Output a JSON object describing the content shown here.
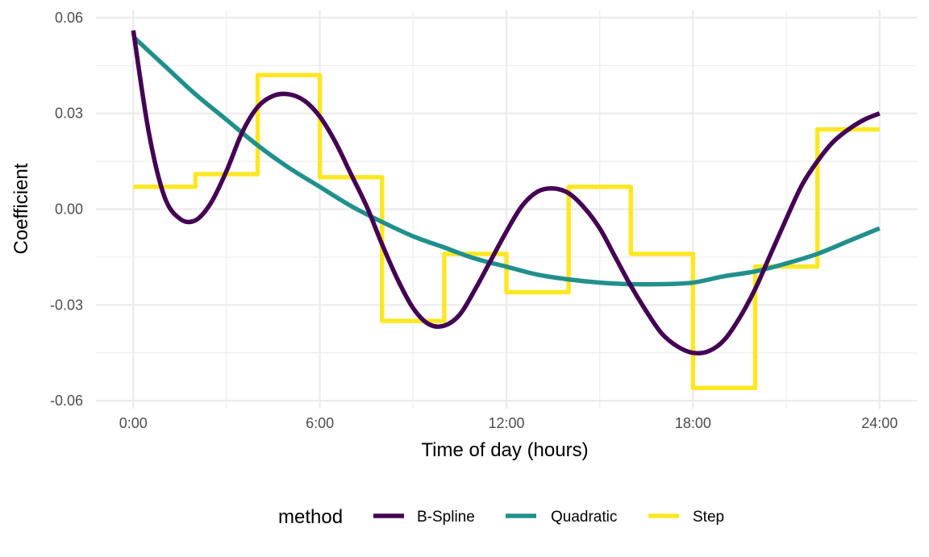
{
  "chart_data": {
    "type": "line",
    "title": "",
    "xlabel": "Time of day (hours)",
    "ylabel": "Coefficient",
    "xlim": [
      -1.2,
      25.2
    ],
    "ylim": [
      -0.0625,
      0.0625
    ],
    "x_ticks": [
      0,
      6,
      12,
      18,
      24
    ],
    "x_tick_labels": [
      "0:00",
      "6:00",
      "12:00",
      "18:00",
      "24:00"
    ],
    "y_ticks": [
      -0.06,
      -0.03,
      0.0,
      0.03,
      0.06
    ],
    "y_tick_labels": [
      "-0.06",
      "-0.03",
      "0.00",
      "0.03",
      "0.06"
    ],
    "x_minor_ticks": [
      3,
      9,
      15,
      21
    ],
    "y_minor_ticks": [
      -0.045,
      -0.015,
      0.015,
      0.045
    ],
    "grid": true,
    "legend": {
      "title": "method",
      "position": "bottom"
    },
    "series": [
      {
        "name": "B-Spline",
        "color": "#440154",
        "style": "smooth",
        "x": [
          0,
          0.5,
          1,
          1.5,
          2,
          2.5,
          3,
          3.5,
          4,
          4.5,
          5,
          5.5,
          6,
          6.5,
          7,
          7.5,
          8,
          8.5,
          9,
          9.5,
          10,
          10.5,
          11,
          11.5,
          12,
          12.5,
          13,
          13.5,
          14,
          14.5,
          15,
          15.5,
          16,
          16.5,
          17,
          17.5,
          18,
          18.5,
          19,
          19.5,
          20,
          20.5,
          21,
          21.5,
          22,
          22.5,
          23,
          23.5,
          24
        ],
        "y": [
          0.056,
          0.024,
          0.004,
          -0.003,
          -0.0035,
          0.002,
          0.012,
          0.024,
          0.032,
          0.0355,
          0.036,
          0.034,
          0.029,
          0.021,
          0.011,
          0.001,
          -0.011,
          -0.022,
          -0.031,
          -0.036,
          -0.0365,
          -0.033,
          -0.025,
          -0.016,
          -0.007,
          0.001,
          0.0055,
          0.0065,
          0.005,
          0.0005,
          -0.006,
          -0.015,
          -0.024,
          -0.032,
          -0.039,
          -0.043,
          -0.045,
          -0.0445,
          -0.041,
          -0.034,
          -0.025,
          -0.014,
          -0.003,
          0.0075,
          0.015,
          0.021,
          0.025,
          0.028,
          0.03
        ]
      },
      {
        "name": "Quadratic",
        "color": "#21908c",
        "style": "smooth",
        "x": [
          0,
          1,
          2,
          3,
          4,
          5,
          6,
          7,
          8,
          9,
          10,
          11,
          12,
          13,
          14,
          15,
          16,
          17,
          18,
          19,
          20,
          21,
          22,
          23,
          24
        ],
        "y": [
          0.054,
          0.045,
          0.036,
          0.028,
          0.02,
          0.013,
          0.007,
          0.001,
          -0.004,
          -0.0085,
          -0.012,
          -0.0155,
          -0.018,
          -0.0205,
          -0.022,
          -0.023,
          -0.0235,
          -0.0235,
          -0.023,
          -0.021,
          -0.0195,
          -0.017,
          -0.014,
          -0.01,
          -0.006
        ]
      },
      {
        "name": "Step",
        "color": "#fde725",
        "style": "step",
        "x": [
          0,
          2,
          4,
          6,
          8,
          10,
          12,
          14,
          16,
          18,
          20,
          22,
          24
        ],
        "y": [
          0.007,
          0.011,
          0.042,
          0.01,
          -0.035,
          -0.014,
          -0.026,
          0.007,
          -0.014,
          -0.056,
          -0.018,
          0.025,
          0.025
        ]
      }
    ]
  }
}
